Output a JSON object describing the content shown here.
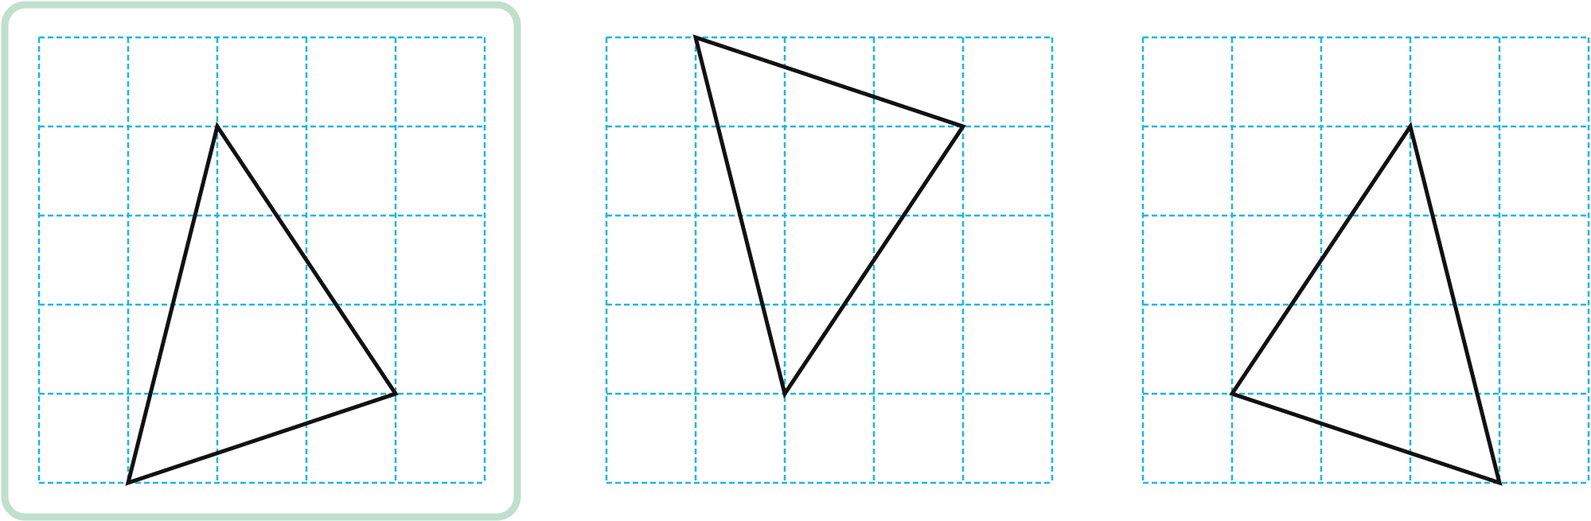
{
  "colors": {
    "grid_line": "#1ab7e6",
    "triangle_stroke": "#111111",
    "selection_border": "#bfe0cc",
    "background": "#ffffff"
  },
  "panels": [
    {
      "name": "panel-1",
      "selected": true,
      "grid_cells": 5,
      "triangle_vertices": [
        [
          2,
          1
        ],
        [
          4,
          4
        ],
        [
          1,
          5
        ]
      ]
    },
    {
      "name": "panel-2",
      "selected": false,
      "grid_cells": 5,
      "triangle_vertices": [
        [
          1,
          0
        ],
        [
          4,
          1
        ],
        [
          2,
          4
        ]
      ]
    },
    {
      "name": "panel-3",
      "selected": false,
      "grid_cells": 5,
      "triangle_vertices": [
        [
          3,
          1
        ],
        [
          1,
          4
        ],
        [
          4,
          5
        ]
      ]
    }
  ]
}
